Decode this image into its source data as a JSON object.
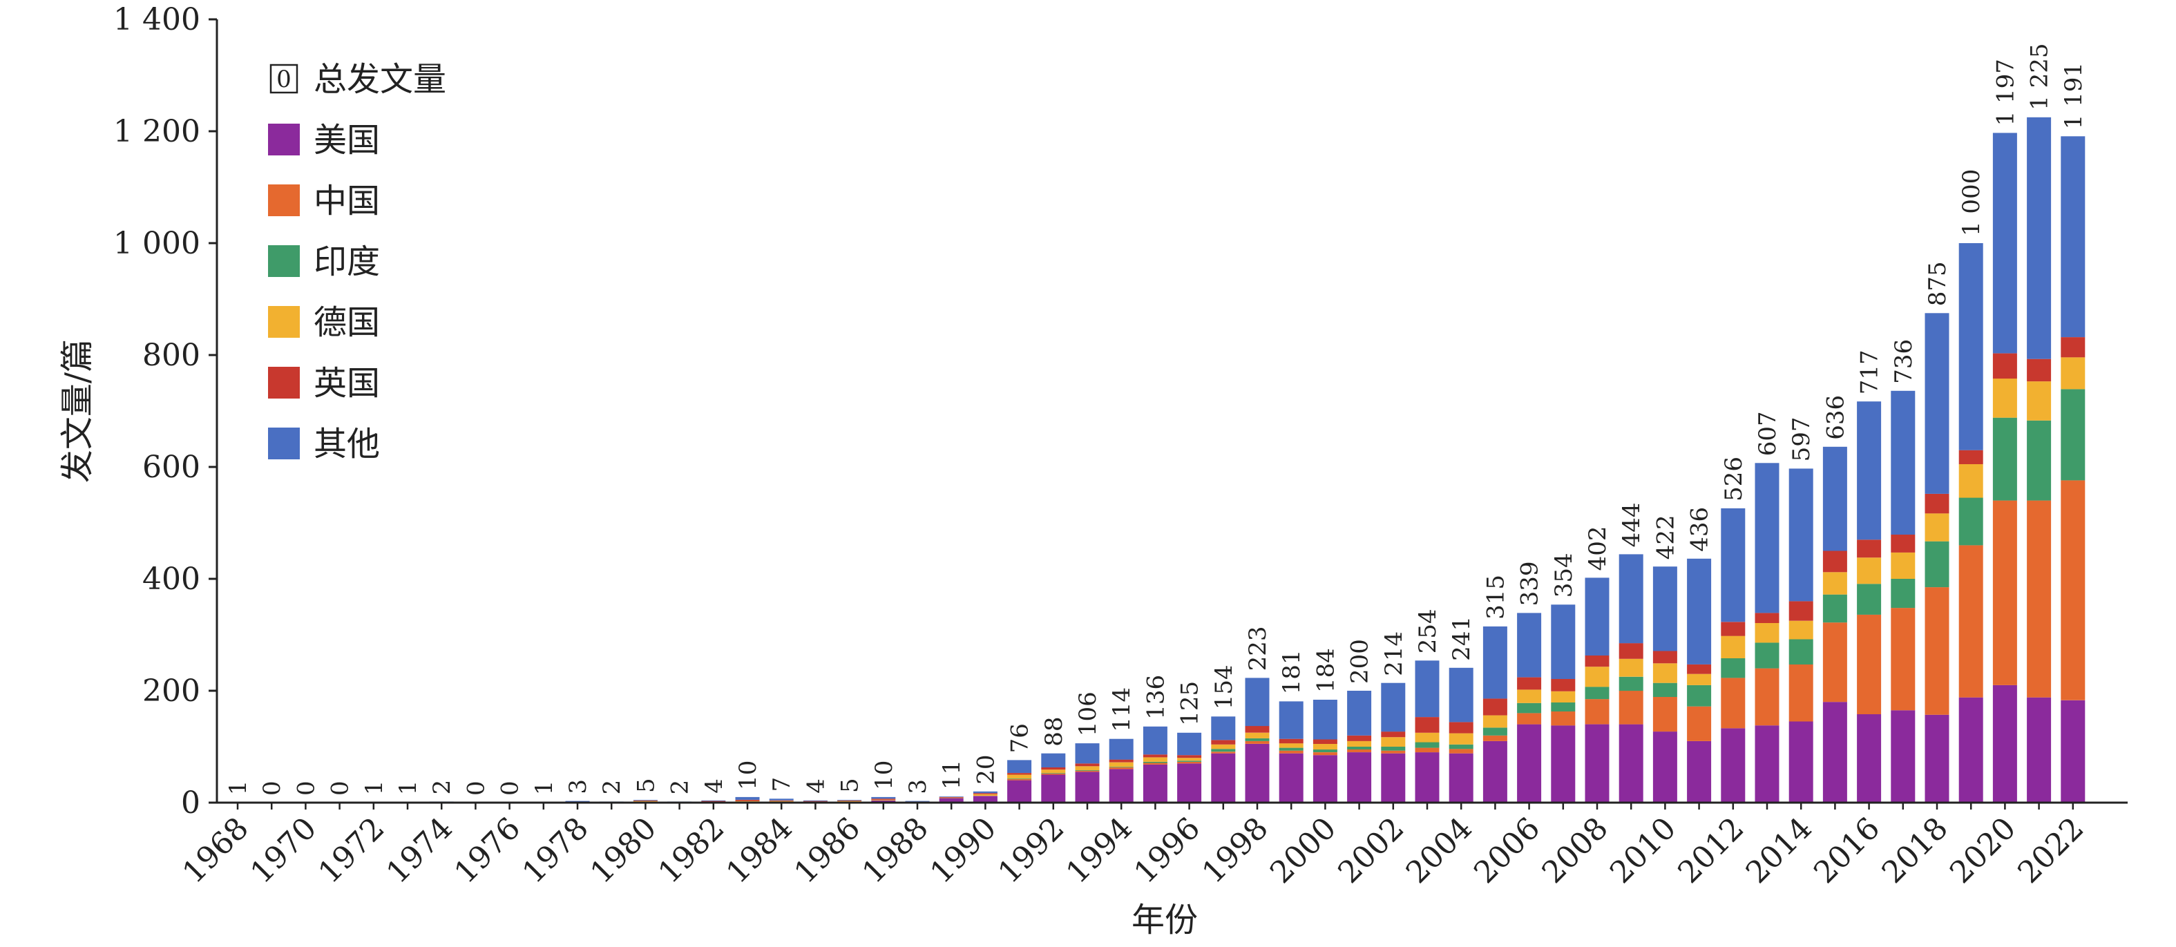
{
  "chart_data": {
    "type": "bar",
    "stacked": true,
    "title": "",
    "xlabel": "年份",
    "ylabel": "发文量/篇",
    "ylim": [
      0,
      1400
    ],
    "yticks": [
      0,
      200,
      400,
      600,
      800,
      1000,
      1200,
      1400
    ],
    "ytick_labels": [
      "0",
      "200",
      "400",
      "600",
      "800",
      "1 000",
      "1 200",
      "1 400"
    ],
    "grid": false,
    "legend_position": "top-left",
    "categories": [
      "1968",
      "1969",
      "1970",
      "1971",
      "1972",
      "1973",
      "1974",
      "1975",
      "1976",
      "1977",
      "1978",
      "1979",
      "1980",
      "1981",
      "1982",
      "1983",
      "1984",
      "1985",
      "1986",
      "1987",
      "1988",
      "1989",
      "1990",
      "1991",
      "1992",
      "1993",
      "1994",
      "1995",
      "1996",
      "1997",
      "1998",
      "1999",
      "2000",
      "2001",
      "2002",
      "2003",
      "2004",
      "2005",
      "2006",
      "2007",
      "2008",
      "2009",
      "2010",
      "2011",
      "2012",
      "2013",
      "2014",
      "2015",
      "2016",
      "2017",
      "2018",
      "2019",
      "2020",
      "2021",
      "2022"
    ],
    "xtick_labels": [
      "1968",
      "1970",
      "1972",
      "1974",
      "1976",
      "1978",
      "1980",
      "1982",
      "1984",
      "1986",
      "1988",
      "1990",
      "1992",
      "1994",
      "1996",
      "1998",
      "2000",
      "2002",
      "2004",
      "2006",
      "2008",
      "2010",
      "2012",
      "2014",
      "2016",
      "2018",
      "2020",
      "2022"
    ],
    "totals": [
      1,
      0,
      0,
      0,
      1,
      1,
      2,
      0,
      0,
      1,
      3,
      2,
      5,
      2,
      4,
      10,
      7,
      4,
      5,
      10,
      3,
      11,
      20,
      76,
      88,
      106,
      114,
      136,
      125,
      154,
      223,
      181,
      184,
      200,
      214,
      254,
      241,
      315,
      339,
      354,
      402,
      444,
      422,
      436,
      526,
      607,
      597,
      636,
      717,
      736,
      875,
      1000,
      1197,
      1225,
      1191
    ],
    "total_labels": [
      "1",
      "0",
      "0",
      "0",
      "1",
      "1",
      "2",
      "0",
      "0",
      "1",
      "3",
      "2",
      "5",
      "2",
      "4",
      "10",
      "7",
      "4",
      "5",
      "10",
      "3",
      "11",
      "20",
      "76",
      "88",
      "106",
      "114",
      "136",
      "125",
      "154",
      "223",
      "181",
      "184",
      "200",
      "214",
      "254",
      "241",
      "315",
      "339",
      "354",
      "402",
      "444",
      "422",
      "436",
      "526",
      "607",
      "597",
      "636",
      "717",
      "736",
      "875",
      "1 000",
      "1 197",
      "1 225",
      "1 191"
    ],
    "total_legend_label": "总发文量",
    "total_legend_symbol": "0",
    "series": [
      {
        "name": "美国",
        "color": "#8B2A9C",
        "values": [
          0,
          0,
          0,
          0,
          0,
          0,
          0,
          0,
          0,
          0,
          1,
          0,
          2,
          1,
          1,
          2,
          2,
          2,
          2,
          4,
          1,
          8,
          12,
          40,
          50,
          55,
          60,
          68,
          70,
          88,
          105,
          88,
          85,
          90,
          88,
          90,
          88,
          110,
          140,
          138,
          140,
          140,
          127,
          110,
          133,
          138,
          145,
          180,
          158,
          165,
          157,
          188,
          210,
          188,
          183
        ]
      },
      {
        "name": "中国",
        "color": "#E5692F",
        "values": [
          0,
          0,
          0,
          0,
          0,
          0,
          0,
          0,
          0,
          0,
          0,
          0,
          0,
          0,
          0,
          0,
          0,
          0,
          0,
          0,
          0,
          0,
          0,
          2,
          2,
          2,
          3,
          3,
          3,
          3,
          5,
          5,
          5,
          5,
          5,
          8,
          8,
          10,
          20,
          25,
          45,
          60,
          62,
          62,
          90,
          102,
          102,
          142,
          178,
          183,
          228,
          272,
          330,
          352,
          393
        ]
      },
      {
        "name": "印度",
        "color": "#3F9B69",
        "values": [
          0,
          0,
          0,
          0,
          0,
          0,
          0,
          0,
          0,
          0,
          0,
          0,
          0,
          0,
          0,
          0,
          0,
          0,
          0,
          0,
          0,
          0,
          0,
          1,
          1,
          1,
          1,
          2,
          2,
          5,
          5,
          5,
          5,
          5,
          7,
          10,
          8,
          14,
          18,
          16,
          22,
          25,
          25,
          38,
          35,
          46,
          45,
          50,
          55,
          52,
          82,
          85,
          148,
          143,
          163
        ]
      },
      {
        "name": "德国",
        "color": "#F2B130",
        "values": [
          0,
          0,
          0,
          0,
          0,
          0,
          0,
          0,
          0,
          0,
          0,
          0,
          1,
          0,
          0,
          1,
          1,
          0,
          1,
          1,
          0,
          1,
          3,
          7,
          6,
          7,
          8,
          8,
          5,
          8,
          10,
          8,
          10,
          10,
          17,
          17,
          20,
          22,
          24,
          20,
          36,
          32,
          35,
          20,
          40,
          35,
          33,
          40,
          47,
          47,
          50,
          60,
          70,
          70,
          57
        ]
      },
      {
        "name": "英国",
        "color": "#C8382E",
        "values": [
          0,
          0,
          0,
          0,
          0,
          0,
          1,
          0,
          0,
          0,
          0,
          1,
          1,
          0,
          2,
          2,
          1,
          1,
          1,
          2,
          1,
          1,
          2,
          3,
          4,
          5,
          5,
          5,
          5,
          8,
          12,
          8,
          8,
          10,
          10,
          28,
          20,
          30,
          22,
          22,
          20,
          28,
          22,
          17,
          25,
          18,
          35,
          38,
          32,
          32,
          35,
          25,
          45,
          40,
          36
        ]
      },
      {
        "name": "其他",
        "color": "#4A6FC2",
        "values": [
          1,
          0,
          0,
          0,
          1,
          1,
          1,
          0,
          0,
          1,
          2,
          1,
          1,
          1,
          1,
          5,
          3,
          1,
          1,
          3,
          1,
          1,
          3,
          23,
          25,
          36,
          37,
          50,
          40,
          42,
          86,
          67,
          71,
          80,
          87,
          101,
          97,
          129,
          115,
          133,
          139,
          159,
          151,
          189,
          203,
          268,
          237,
          186,
          247,
          257,
          323,
          370,
          394,
          432,
          359
        ]
      }
    ]
  }
}
